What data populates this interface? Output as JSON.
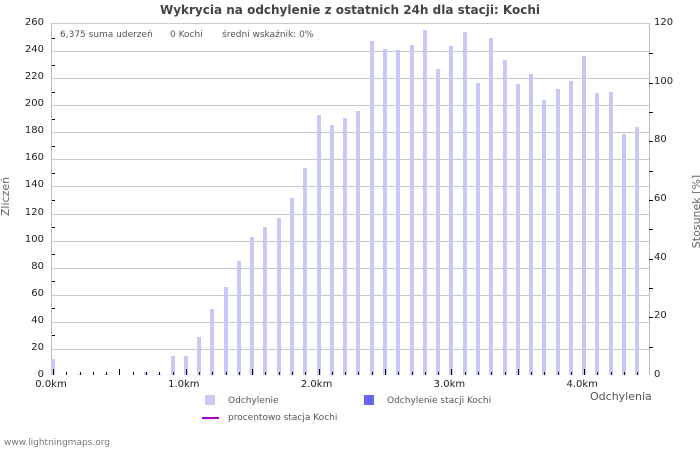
{
  "title": "Wykrycia na odchylenie z ostatnich 24h dla stacji: Kochi",
  "info": {
    "total": "6,375 suma uderzeń",
    "station": "0 Kochi",
    "avg": "średni wskaźnik: 0%"
  },
  "axes": {
    "left_title": "Zliczeń",
    "right_title": "Stosunek [%]",
    "x_title": "Odchylenia",
    "left_ticks": [
      "0",
      "20",
      "40",
      "60",
      "80",
      "100",
      "120",
      "140",
      "160",
      "180",
      "200",
      "220",
      "240",
      "260"
    ],
    "right_ticks": [
      "0",
      "20",
      "40",
      "60",
      "80",
      "100",
      "120"
    ],
    "x_ticks": [
      "0.0km",
      "1.0km",
      "2.0km",
      "3.0km",
      "4.0km"
    ]
  },
  "legend": {
    "series1": "Odchylenie",
    "series2": "Odchylenie stacji Kochi",
    "series3": "procentowo stacja Kochi"
  },
  "colors": {
    "series1": "#c8c8f4",
    "series2": "#6666ee",
    "series3": "#aa00cc",
    "grid": "#c8c8c8"
  },
  "footer": "www.lightningmaps.org",
  "chart_data": {
    "type": "bar",
    "title": "Wykrycia na odchylenie z ostatnich 24h dla stacji: Kochi",
    "xlabel": "Odchylenia",
    "ylabel": "Zliczeń",
    "ylabel_right": "Stosunek [%]",
    "ylim": [
      0,
      260
    ],
    "ylim_right": [
      0,
      120
    ],
    "grid": true,
    "legend_position": "bottom",
    "categories": [
      "0.0",
      "0.1",
      "0.2",
      "0.3",
      "0.4",
      "0.5",
      "0.6",
      "0.7",
      "0.8",
      "0.9",
      "1.0",
      "1.1",
      "1.2",
      "1.3",
      "1.4",
      "1.5",
      "1.6",
      "1.7",
      "1.8",
      "1.9",
      "2.0",
      "2.1",
      "2.2",
      "2.3",
      "2.4",
      "2.5",
      "2.6",
      "2.7",
      "2.8",
      "2.9",
      "3.0",
      "3.1",
      "3.2",
      "3.3",
      "3.4",
      "3.5",
      "3.6",
      "3.7",
      "3.8",
      "3.9",
      "4.0",
      "4.1",
      "4.2",
      "4.3",
      "4.4"
    ],
    "series": [
      {
        "name": "Odchylenie",
        "values": [
          12,
          0,
          1,
          0,
          1,
          0,
          0,
          2,
          1,
          14,
          14,
          28,
          49,
          65,
          84,
          102,
          109,
          116,
          131,
          153,
          192,
          185,
          190,
          195,
          247,
          241,
          240,
          244,
          255,
          226,
          243,
          253,
          216,
          249,
          233,
          215,
          222,
          203,
          211,
          217,
          236,
          208,
          209,
          178,
          183
        ]
      },
      {
        "name": "Odchylenie stacji Kochi",
        "values": [
          0,
          0,
          0,
          0,
          0,
          0,
          0,
          0,
          0,
          0,
          0,
          0,
          0,
          0,
          0,
          0,
          0,
          0,
          0,
          0,
          0,
          0,
          0,
          0,
          0,
          0,
          0,
          0,
          0,
          0,
          0,
          0,
          0,
          0,
          0,
          0,
          0,
          0,
          0,
          0,
          0,
          0,
          0,
          0,
          0
        ]
      },
      {
        "name": "procentowo stacja Kochi",
        "values": [
          0,
          0,
          0,
          0,
          0,
          0,
          0,
          0,
          0,
          0,
          0,
          0,
          0,
          0,
          0,
          0,
          0,
          0,
          0,
          0,
          0,
          0,
          0,
          0,
          0,
          0,
          0,
          0,
          0,
          0,
          0,
          0,
          0,
          0,
          0,
          0,
          0,
          0,
          0,
          0,
          0,
          0,
          0,
          0,
          0
        ]
      }
    ]
  }
}
